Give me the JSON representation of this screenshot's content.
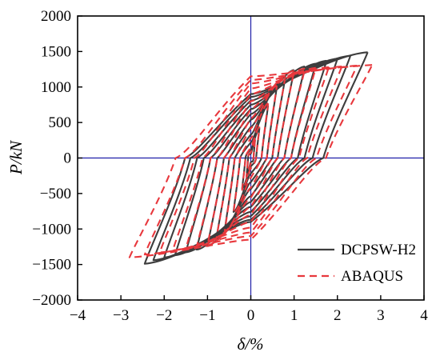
{
  "chart_data": {
    "type": "line",
    "title": "",
    "xlabel": "δ/%",
    "ylabel": "P/kN",
    "xlim": [
      -4,
      4
    ],
    "ylim": [
      -2000,
      2000
    ],
    "x_ticks": [
      -4,
      -3,
      -2,
      -1,
      0,
      1,
      2,
      3,
      4
    ],
    "y_ticks": [
      -2000,
      -1500,
      -1000,
      -500,
      0,
      500,
      1000,
      1500,
      2000
    ],
    "x_tick_labels": [
      "−4",
      "−3",
      "−2",
      "−1",
      "0",
      "1",
      "2",
      "3",
      "4"
    ],
    "y_tick_labels": [
      "−2000",
      "−1500",
      "−1000",
      "−500",
      "0",
      "500",
      "1000",
      "1500",
      "2000"
    ],
    "grid": false,
    "reference_lines": {
      "x": 0,
      "y": 0,
      "color": "#1f1fa8"
    },
    "legend": {
      "position": "bottom-right"
    },
    "series": [
      {
        "name": "DCPSW-H2",
        "style": "solid",
        "color": "#3d3d3d",
        "cycles": [
          {
            "max": [
              0.1,
              260
            ],
            "min": [
              -0.1,
              -260
            ],
            "res_pos": 60,
            "res_neg": -60
          },
          {
            "max": [
              0.2,
              420
            ],
            "min": [
              -0.2,
              -430
            ],
            "res_pos": 120,
            "res_neg": -120
          },
          {
            "max": [
              0.4,
              740
            ],
            "min": [
              -0.4,
              -760
            ],
            "res_pos": 220,
            "res_neg": -220
          },
          {
            "max": [
              0.6,
              1000
            ],
            "min": [
              -0.6,
              -1010
            ],
            "res_pos": 330,
            "res_neg": -340
          },
          {
            "max": [
              0.8,
              1150
            ],
            "min": [
              -0.8,
              -1150
            ],
            "res_pos": 440,
            "res_neg": -440
          },
          {
            "max": [
              1.0,
              1240
            ],
            "min": [
              -1.0,
              -1240
            ],
            "res_pos": 540,
            "res_neg": -540
          },
          {
            "max": [
              1.25,
              1290
            ],
            "min": [
              -1.25,
              -1290
            ],
            "res_pos": 620,
            "res_neg": -620
          },
          {
            "max": [
              1.5,
              1330
            ],
            "min": [
              -1.5,
              -1330
            ],
            "res_pos": 690,
            "res_neg": -690
          },
          {
            "max": [
              1.75,
              1370
            ],
            "min": [
              -1.75,
              -1370
            ],
            "res_pos": 750,
            "res_neg": -760
          },
          {
            "max": [
              2.0,
              1400
            ],
            "min": [
              -2.0,
              -1400
            ],
            "res_pos": 810,
            "res_neg": -820
          },
          {
            "max": [
              2.3,
              1440
            ],
            "min": [
              -2.25,
              -1440
            ],
            "res_pos": 860,
            "res_neg": -870
          },
          {
            "max": [
              2.7,
              1490
            ],
            "min": [
              -2.45,
              -1490
            ],
            "res_pos": 900,
            "res_neg": -900
          }
        ]
      },
      {
        "name": "ABAQUS",
        "style": "dashed",
        "color": "#e8383d",
        "cycles": [
          {
            "max": [
              0.1,
              270
            ],
            "min": [
              -0.1,
              -270
            ],
            "res_pos": 80,
            "res_neg": -80
          },
          {
            "max": [
              0.2,
              440
            ],
            "min": [
              -0.2,
              -450
            ],
            "res_pos": 150,
            "res_neg": -150
          },
          {
            "max": [
              0.4,
              770
            ],
            "min": [
              -0.4,
              -780
            ],
            "res_pos": 280,
            "res_neg": -280
          },
          {
            "max": [
              0.6,
              1020
            ],
            "min": [
              -0.6,
              -1030
            ],
            "res_pos": 420,
            "res_neg": -420
          },
          {
            "max": [
              0.8,
              1160
            ],
            "min": [
              -0.8,
              -1160
            ],
            "res_pos": 560,
            "res_neg": -560
          },
          {
            "max": [
              1.0,
              1230
            ],
            "min": [
              -1.0,
              -1230
            ],
            "res_pos": 690,
            "res_neg": -690
          },
          {
            "max": [
              1.25,
              1260
            ],
            "min": [
              -1.25,
              -1260
            ],
            "res_pos": 800,
            "res_neg": -800
          },
          {
            "max": [
              1.5,
              1270
            ],
            "min": [
              -1.5,
              -1280
            ],
            "res_pos": 900,
            "res_neg": -900
          },
          {
            "max": [
              1.8,
              1280
            ],
            "min": [
              -1.8,
              -1300
            ],
            "res_pos": 980,
            "res_neg": -980
          },
          {
            "max": [
              2.1,
              1290
            ],
            "min": [
              -2.1,
              -1330
            ],
            "res_pos": 1050,
            "res_neg": -1050
          },
          {
            "max": [
              2.45,
              1300
            ],
            "min": [
              -2.45,
              -1360
            ],
            "res_pos": 1100,
            "res_neg": -1100
          },
          {
            "max": [
              2.8,
              1310
            ],
            "min": [
              -2.8,
              -1400
            ],
            "res_pos": 1150,
            "res_neg": -1150
          }
        ]
      }
    ]
  }
}
